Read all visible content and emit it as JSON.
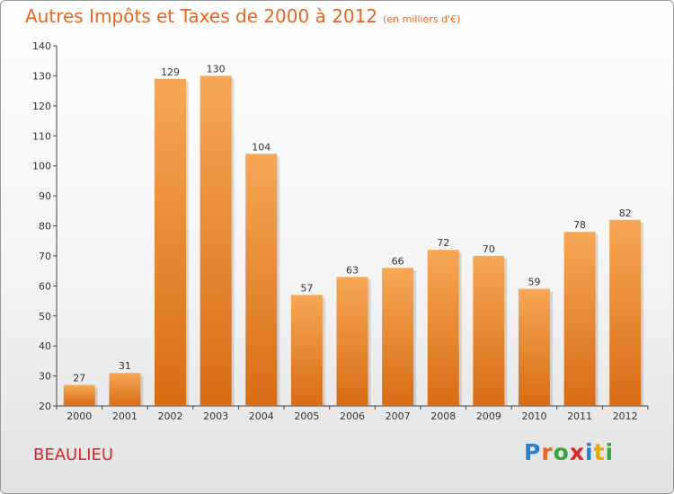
{
  "header": {
    "title": "Autres Impôts et Taxes de 2000 à 2012",
    "subtitle": "(en milliers d'€)"
  },
  "footer": {
    "town": "BEAULIEU",
    "logo": [
      "P",
      "r",
      "o",
      "x",
      "i",
      "t",
      "i"
    ],
    "logo_colors": [
      "#2a7fd4",
      "#e8661e",
      "#3aa53a",
      "#d8282a",
      "#2a7fd4",
      "#e8a800",
      "#3aa53a"
    ]
  },
  "colors": {
    "bar_light": "#f6a755",
    "bar_dark": "#d86c15",
    "axis": "#444444",
    "title": "#e8661e",
    "town": "#d8282a"
  },
  "chart_data": {
    "type": "bar",
    "categories": [
      "2000",
      "2001",
      "2002",
      "2003",
      "2004",
      "2005",
      "2006",
      "2007",
      "2008",
      "2009",
      "2010",
      "2011",
      "2012"
    ],
    "values": [
      27,
      31,
      129,
      130,
      104,
      57,
      63,
      66,
      72,
      70,
      59,
      78,
      82
    ],
    "ylim": [
      20,
      140
    ],
    "yticks": [
      20,
      30,
      40,
      50,
      60,
      70,
      80,
      90,
      100,
      110,
      120,
      130,
      140
    ],
    "grid": false
  }
}
